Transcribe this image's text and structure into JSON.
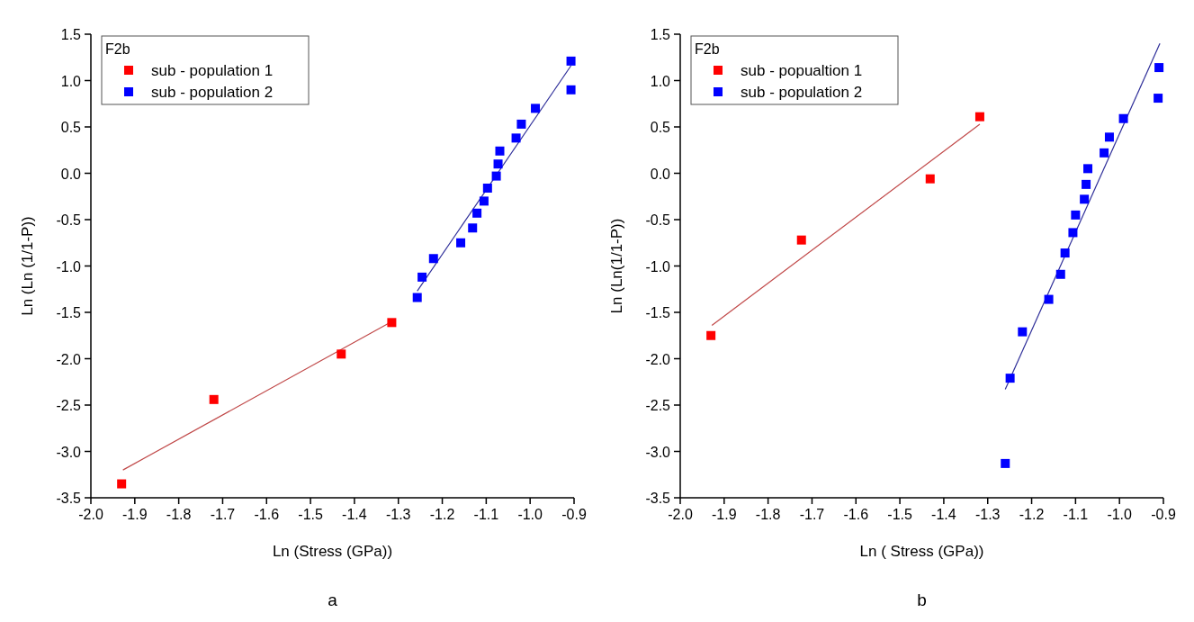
{
  "chart_data": [
    {
      "type": "scatter",
      "xlabel": "Ln (Stress (GPa))",
      "ylabel": "Ln (Ln (1/1-P))",
      "legend_title": "F2b",
      "legend": "top left",
      "line_style": "solid",
      "annotations": [
        "a"
      ],
      "xlim": [
        -2.0,
        -0.9
      ],
      "xticks": [
        {
          "value": -2.0,
          "label": "-2.0"
        },
        {
          "value": -1.9,
          "label": "-1.9"
        },
        {
          "value": -1.8,
          "label": "-1.8"
        },
        {
          "value": -1.7,
          "label": "-1.7"
        },
        {
          "value": -1.6,
          "label": "-1.6"
        },
        {
          "value": -1.5,
          "label": "-1.5"
        },
        {
          "value": -1.4,
          "label": "-1.4"
        },
        {
          "value": -1.3,
          "label": "-1.3"
        },
        {
          "value": -1.2,
          "label": "-1.2"
        },
        {
          "value": -1.1,
          "label": "-1.1"
        },
        {
          "value": -1.0,
          "label": "-1.0"
        },
        {
          "value": -0.9,
          "label": "-0.9"
        }
      ],
      "ylim": [
        -3.5,
        1.5
      ],
      "yticks": [
        {
          "value": -3.5,
          "label": "-3.5"
        },
        {
          "value": -3.0,
          "label": "-3.0"
        },
        {
          "value": -2.5,
          "label": "-2.5"
        },
        {
          "value": -2.0,
          "label": "-2.0"
        },
        {
          "value": -1.5,
          "label": "-1.5"
        },
        {
          "value": -1.0,
          "label": "-1.0"
        },
        {
          "value": -0.5,
          "label": "-0.5"
        },
        {
          "value": 0.0,
          "label": "0.0"
        },
        {
          "value": 0.5,
          "label": "0.5"
        },
        {
          "value": 1.0,
          "label": "1.0"
        },
        {
          "value": 1.5,
          "label": "1.5"
        }
      ],
      "series": [
        {
          "type": "line",
          "marker": "none",
          "color": "#c04848",
          "x": [
            -1.927,
            -1.315
          ],
          "values": [
            -3.2,
            -1.6
          ]
        },
        {
          "type": "line",
          "marker": "none",
          "color": "#30309a",
          "x": [
            -1.257,
            -0.907
          ],
          "values": [
            -1.27,
            1.16
          ]
        },
        {
          "name": "sub - population 1",
          "marker": "square",
          "color": "#ff0000",
          "x": [
            -1.93,
            -1.72,
            -1.43,
            -1.315
          ],
          "values": [
            -3.35,
            -2.44,
            -1.95,
            -1.61
          ]
        },
        {
          "name": "sub - population 2",
          "marker": "square",
          "color": "#0000ff",
          "x": [
            -1.257,
            -1.246,
            -1.22,
            -1.158,
            -1.131,
            -1.121,
            -1.105,
            -1.097,
            -1.077,
            -1.073,
            -1.069,
            -1.032,
            -1.02,
            -0.988,
            -0.907,
            -0.907
          ],
          "values": [
            -1.34,
            -1.12,
            -0.92,
            -0.75,
            -0.59,
            -0.43,
            -0.3,
            -0.16,
            -0.03,
            0.1,
            0.24,
            0.38,
            0.53,
            0.7,
            0.9,
            1.21
          ]
        }
      ]
    },
    {
      "type": "scatter",
      "xlabel": "Ln ( Stress (GPa))",
      "ylabel": "Ln (Ln(1/1-P))",
      "legend_title": "F2b",
      "legend": "top left",
      "line_style": "solid",
      "annotations": [
        "b"
      ],
      "xlim": [
        -2.0,
        -0.9
      ],
      "xticks": [
        {
          "value": -2.0,
          "label": "-2.0"
        },
        {
          "value": -1.9,
          "label": "-1.9"
        },
        {
          "value": -1.8,
          "label": "-1.8"
        },
        {
          "value": -1.7,
          "label": "-1.7"
        },
        {
          "value": -1.6,
          "label": "-1.6"
        },
        {
          "value": -1.5,
          "label": "-1.5"
        },
        {
          "value": -1.4,
          "label": "-1.4"
        },
        {
          "value": -1.3,
          "label": "-1.3"
        },
        {
          "value": -1.2,
          "label": "-1.2"
        },
        {
          "value": -1.1,
          "label": "-1.1"
        },
        {
          "value": -1.0,
          "label": "-1.0"
        },
        {
          "value": -0.9,
          "label": "-0.9"
        }
      ],
      "ylim": [
        -3.5,
        1.5
      ],
      "yticks": [
        {
          "value": -3.5,
          "label": "-3.5"
        },
        {
          "value": -3.0,
          "label": "-3.0"
        },
        {
          "value": -2.5,
          "label": "-2.5"
        },
        {
          "value": -2.0,
          "label": "-2.0"
        },
        {
          "value": -1.5,
          "label": "-1.5"
        },
        {
          "value": -1.0,
          "label": "-1.0"
        },
        {
          "value": -0.5,
          "label": "-0.5"
        },
        {
          "value": 0.0,
          "label": "0.0"
        },
        {
          "value": 0.5,
          "label": "0.5"
        },
        {
          "value": 1.0,
          "label": "1.0"
        },
        {
          "value": 1.5,
          "label": "1.5"
        }
      ],
      "series": [
        {
          "type": "line",
          "marker": "none",
          "color": "#c04848",
          "x": [
            -1.928,
            -1.318
          ],
          "values": [
            -1.64,
            0.53
          ]
        },
        {
          "type": "line",
          "marker": "none",
          "color": "#30309a",
          "x": [
            -1.26,
            -0.908
          ],
          "values": [
            -2.33,
            1.4
          ]
        },
        {
          "name": "sub - popualtion 1",
          "marker": "square",
          "color": "#ff0000",
          "x": [
            -1.93,
            -1.724,
            -1.431,
            -1.318
          ],
          "values": [
            -1.75,
            -0.72,
            -0.06,
            0.61
          ]
        },
        {
          "name": "sub - population 2",
          "marker": "square",
          "color": "#0000ff",
          "x": [
            -1.26,
            -1.249,
            -1.221,
            -1.161,
            -1.134,
            -1.124,
            -1.106,
            -1.1,
            -1.08,
            -1.076,
            -1.072,
            -1.035,
            -1.023,
            -0.991,
            -0.912,
            -0.91
          ],
          "values": [
            -3.13,
            -2.21,
            -1.71,
            -1.36,
            -1.09,
            -0.86,
            -0.64,
            -0.45,
            -0.28,
            -0.12,
            0.05,
            0.22,
            0.39,
            0.59,
            0.81,
            1.14
          ]
        }
      ]
    }
  ]
}
